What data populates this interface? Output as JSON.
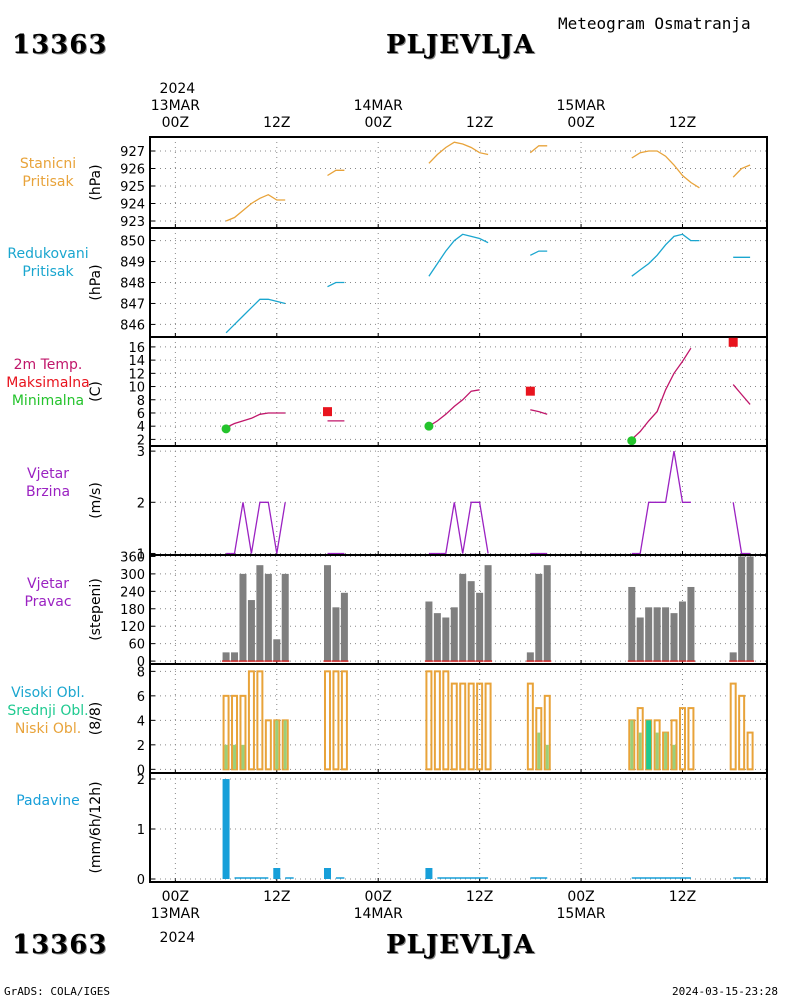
{
  "header": {
    "station_id": "13363",
    "city": "PLJEVLJA",
    "subtitle": "Meteogram Osmatranja"
  },
  "footer": {
    "left": "GrADS: COLA/IGES",
    "right": "2024-03-15-23:28"
  },
  "time_axis": {
    "top_year": "2024",
    "bottom_year": "2024",
    "ticks": [
      {
        "hour": 0,
        "label": "00Z",
        "date": "13MAR"
      },
      {
        "hour": 12,
        "label": "12Z",
        "date": ""
      },
      {
        "hour": 24,
        "label": "00Z",
        "date": "14MAR"
      },
      {
        "hour": 36,
        "label": "12Z",
        "date": ""
      },
      {
        "hour": 48,
        "label": "00Z",
        "date": "15MAR"
      },
      {
        "hour": 60,
        "label": "12Z",
        "date": ""
      }
    ],
    "range_hours": [
      -3,
      70
    ]
  },
  "colors": {
    "station_pressure": "#e8a33a",
    "reduced_pressure": "#1aa6cf",
    "temp_line": "#c0166a",
    "temp_max": "#e8141e",
    "temp_min": "#24c32c",
    "wind": "#9b22c2",
    "wind_dir_bar": "#7f7f7f",
    "wind_dir_base": "#d02a2a",
    "cloud_high": "#1aa6cf",
    "cloud_mid": "#1fca90",
    "cloud_low": "#e8a33a",
    "cloud_low_fill": "#9ccf7a",
    "precip": "#179fd9"
  },
  "chart_data": [
    {
      "type": "line",
      "name": "station_pressure",
      "label_lines": [
        "Stanicni",
        "Pritisak"
      ],
      "unit": "(hPa)",
      "yticks": [
        923,
        924,
        925,
        926,
        927
      ],
      "ylim": [
        922.6,
        927.8
      ],
      "segments": [
        [
          [
            6,
            923.0
          ],
          [
            7,
            923.2
          ],
          [
            8,
            923.6
          ],
          [
            9,
            924.0
          ],
          [
            10,
            924.3
          ],
          [
            11,
            924.5
          ],
          [
            12,
            924.2
          ],
          [
            13,
            924.2
          ]
        ],
        [
          [
            18,
            925.6
          ],
          [
            19,
            925.9
          ],
          [
            20,
            925.9
          ]
        ],
        [
          [
            30,
            926.3
          ],
          [
            31,
            926.8
          ],
          [
            32,
            927.2
          ],
          [
            33,
            927.5
          ],
          [
            34,
            927.4
          ],
          [
            35,
            927.2
          ],
          [
            36,
            926.9
          ],
          [
            37,
            926.8
          ]
        ],
        [
          [
            42,
            926.9
          ],
          [
            43,
            927.3
          ],
          [
            44,
            927.3
          ]
        ],
        [
          [
            54,
            926.6
          ],
          [
            55,
            926.9
          ],
          [
            56,
            927.0
          ],
          [
            57,
            927.0
          ],
          [
            58,
            926.7
          ],
          [
            59,
            926.2
          ],
          [
            60,
            925.6
          ],
          [
            61,
            925.2
          ],
          [
            62,
            924.9
          ]
        ],
        [
          [
            66,
            925.5
          ],
          [
            67,
            926.0
          ],
          [
            68,
            926.2
          ]
        ]
      ]
    },
    {
      "type": "line",
      "name": "reduced_pressure",
      "label_lines": [
        "Redukovani",
        "Pritisak"
      ],
      "unit": "(hPa)",
      "yticks": [
        846,
        847,
        848,
        849,
        850
      ],
      "ylim": [
        845.4,
        850.6
      ],
      "segments": [
        [
          [
            6,
            845.6
          ],
          [
            7,
            846.0
          ],
          [
            8,
            846.4
          ],
          [
            9,
            846.8
          ],
          [
            10,
            847.2
          ],
          [
            11,
            847.2
          ],
          [
            12,
            847.1
          ],
          [
            13,
            847.0
          ]
        ],
        [
          [
            18,
            847.8
          ],
          [
            19,
            848.0
          ],
          [
            20,
            848.0
          ]
        ],
        [
          [
            30,
            848.3
          ],
          [
            31,
            848.9
          ],
          [
            32,
            849.5
          ],
          [
            33,
            850.0
          ],
          [
            34,
            850.3
          ],
          [
            35,
            850.2
          ],
          [
            36,
            850.1
          ],
          [
            37,
            849.9
          ]
        ],
        [
          [
            42,
            849.3
          ],
          [
            43,
            849.5
          ],
          [
            44,
            849.5
          ]
        ],
        [
          [
            54,
            848.3
          ],
          [
            55,
            848.6
          ],
          [
            56,
            848.9
          ],
          [
            57,
            849.3
          ],
          [
            58,
            849.8
          ],
          [
            59,
            850.2
          ],
          [
            60,
            850.3
          ],
          [
            61,
            850.0
          ],
          [
            62,
            850.0
          ]
        ],
        [
          [
            66,
            849.2
          ],
          [
            67,
            849.2
          ],
          [
            68,
            849.2
          ]
        ]
      ]
    },
    {
      "type": "line",
      "name": "temperature",
      "label_lines": [
        "2m Temp.",
        "Maksimalna",
        "Minimalna"
      ],
      "unit": "(C)",
      "yticks": [
        2,
        4,
        6,
        8,
        10,
        12,
        14,
        16
      ],
      "ylim": [
        1,
        17.5
      ],
      "segments": [
        [
          [
            6,
            3.8
          ],
          [
            7,
            4.4
          ],
          [
            8,
            4.8
          ],
          [
            9,
            5.2
          ],
          [
            10,
            5.8
          ],
          [
            11,
            6.0
          ],
          [
            12,
            6.0
          ],
          [
            13,
            6.0
          ]
        ],
        [
          [
            18,
            4.8
          ],
          [
            19,
            4.8
          ],
          [
            20,
            4.8
          ]
        ],
        [
          [
            30,
            4.0
          ],
          [
            31,
            4.8
          ],
          [
            32,
            5.8
          ],
          [
            33,
            7.0
          ],
          [
            34,
            8.0
          ],
          [
            35,
            9.3
          ],
          [
            36,
            9.5
          ]
        ],
        [
          [
            42,
            6.5
          ],
          [
            43,
            6.2
          ],
          [
            44,
            5.8
          ]
        ],
        [
          [
            54,
            2.0
          ],
          [
            55,
            3.2
          ],
          [
            56,
            4.8
          ],
          [
            57,
            6.2
          ],
          [
            58,
            9.5
          ],
          [
            59,
            12.0
          ],
          [
            60,
            13.8
          ],
          [
            61,
            15.8
          ]
        ],
        [
          [
            66,
            10.3
          ],
          [
            67,
            8.8
          ],
          [
            68,
            7.3
          ]
        ]
      ],
      "max_points": [
        [
          18,
          6.2
        ],
        [
          42,
          9.3
        ],
        [
          66,
          16.7
        ]
      ],
      "min_points": [
        [
          6,
          3.6
        ],
        [
          30,
          4.0
        ],
        [
          54,
          1.8
        ]
      ]
    },
    {
      "type": "line",
      "name": "wind_speed",
      "label_lines": [
        "Vjetar",
        "Brzina"
      ],
      "unit": "(m/s)",
      "yticks": [
        1,
        2,
        3
      ],
      "ylim": [
        0.97,
        3.1
      ],
      "segments": [
        [
          [
            6,
            1
          ],
          [
            7,
            1
          ],
          [
            8,
            2
          ],
          [
            9,
            1
          ],
          [
            10,
            2
          ],
          [
            11,
            2
          ],
          [
            12,
            1
          ],
          [
            13,
            2
          ]
        ],
        [
          [
            18,
            1
          ],
          [
            19,
            1
          ],
          [
            20,
            1
          ]
        ],
        [
          [
            30,
            1
          ],
          [
            31,
            1
          ],
          [
            32,
            1
          ],
          [
            33,
            2
          ],
          [
            34,
            1
          ],
          [
            35,
            2
          ],
          [
            36,
            2
          ],
          [
            37,
            1
          ]
        ],
        [
          [
            42,
            1
          ],
          [
            43,
            1
          ],
          [
            44,
            1
          ]
        ],
        [
          [
            54,
            1
          ],
          [
            55,
            1
          ],
          [
            56,
            2
          ],
          [
            57,
            2
          ],
          [
            58,
            2
          ],
          [
            59,
            3
          ],
          [
            60,
            2
          ],
          [
            61,
            2
          ]
        ],
        [
          [
            66,
            2
          ],
          [
            67,
            1
          ],
          [
            68,
            1
          ]
        ]
      ]
    },
    {
      "type": "bar",
      "name": "wind_direction",
      "label_lines": [
        "Vjetar",
        "Pravac"
      ],
      "unit": "(stepeni)",
      "yticks": [
        0,
        60,
        120,
        180,
        240,
        300,
        360
      ],
      "ylim": [
        -10,
        365
      ],
      "bars": [
        [
          6,
          30
        ],
        [
          7,
          30
        ],
        [
          8,
          300
        ],
        [
          9,
          210
        ],
        [
          10,
          330
        ],
        [
          11,
          300
        ],
        [
          12,
          75
        ],
        [
          13,
          300
        ],
        [
          18,
          330
        ],
        [
          19,
          185
        ],
        [
          20,
          235
        ],
        [
          30,
          205
        ],
        [
          31,
          165
        ],
        [
          32,
          150
        ],
        [
          33,
          185
        ],
        [
          34,
          300
        ],
        [
          35,
          275
        ],
        [
          36,
          235
        ],
        [
          37,
          330
        ],
        [
          42,
          30
        ],
        [
          43,
          300
        ],
        [
          44,
          330
        ],
        [
          54,
          255
        ],
        [
          55,
          150
        ],
        [
          56,
          185
        ],
        [
          57,
          185
        ],
        [
          58,
          185
        ],
        [
          59,
          165
        ],
        [
          60,
          205
        ],
        [
          61,
          255
        ],
        [
          66,
          30
        ],
        [
          67,
          360
        ],
        [
          68,
          360
        ]
      ]
    },
    {
      "type": "bar",
      "name": "cloud_cover",
      "label_lines": [
        "Visoki Obl.",
        "Srednji Obl.",
        "Niski Obl."
      ],
      "unit": "(8/8)",
      "yticks": [
        0,
        2,
        4,
        6,
        8
      ],
      "ylim": [
        -0.3,
        8.6
      ],
      "low": [
        [
          6,
          6
        ],
        [
          7,
          6
        ],
        [
          8,
          6
        ],
        [
          9,
          8
        ],
        [
          10,
          8
        ],
        [
          11,
          4
        ],
        [
          12,
          4
        ],
        [
          13,
          4
        ],
        [
          18,
          8
        ],
        [
          19,
          8
        ],
        [
          20,
          8
        ],
        [
          30,
          8
        ],
        [
          31,
          8
        ],
        [
          32,
          8
        ],
        [
          33,
          7
        ],
        [
          34,
          7
        ],
        [
          35,
          7
        ],
        [
          36,
          7
        ],
        [
          37,
          7
        ],
        [
          42,
          7
        ],
        [
          43,
          5
        ],
        [
          44,
          6
        ],
        [
          54,
          4
        ],
        [
          55,
          5
        ],
        [
          56,
          4
        ],
        [
          57,
          4
        ],
        [
          58,
          3
        ],
        [
          59,
          4
        ],
        [
          60,
          5
        ],
        [
          61,
          5
        ],
        [
          66,
          7
        ],
        [
          67,
          6
        ],
        [
          68,
          3
        ]
      ],
      "low_fill": [
        [
          6,
          2
        ],
        [
          7,
          2
        ],
        [
          8,
          2
        ],
        [
          12,
          4
        ],
        [
          13,
          4
        ],
        [
          43,
          3
        ],
        [
          44,
          2
        ],
        [
          54,
          4
        ],
        [
          55,
          3
        ],
        [
          56,
          3
        ],
        [
          57,
          3
        ],
        [
          58,
          3
        ],
        [
          59,
          2
        ]
      ],
      "mid": [
        [
          56,
          4
        ]
      ]
    },
    {
      "type": "bar",
      "name": "precipitation",
      "label_lines": [
        "Padavine"
      ],
      "unit": "(mm/6h/12h)",
      "yticks": [
        0,
        1,
        2
      ],
      "ylim": [
        -0.06,
        2.12
      ],
      "bars": [
        [
          6,
          2.0
        ],
        [
          12,
          0.22
        ],
        [
          18,
          0.22
        ],
        [
          30,
          0.22
        ]
      ],
      "traces": [
        [
          [
            7,
            0.02
          ],
          [
            11,
            0.02
          ]
        ],
        [
          [
            13,
            0.02
          ],
          [
            14,
            0.02
          ]
        ],
        [
          [
            19,
            0.02
          ],
          [
            20,
            0.02
          ]
        ],
        [
          [
            31,
            0.02
          ],
          [
            37,
            0.02
          ]
        ],
        [
          [
            42,
            0.02
          ],
          [
            44,
            0.02
          ]
        ],
        [
          [
            54,
            0.02
          ],
          [
            61,
            0.02
          ]
        ],
        [
          [
            66,
            0.02
          ],
          [
            68,
            0.02
          ]
        ]
      ]
    }
  ]
}
